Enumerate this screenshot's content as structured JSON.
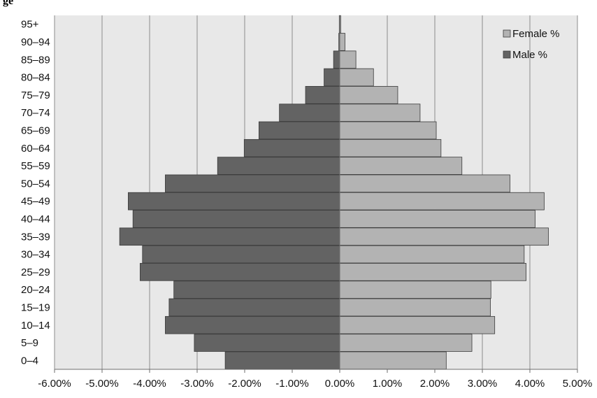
{
  "chart_data": {
    "type": "bar",
    "orientation": "horizontal",
    "title": "",
    "xlabel": "",
    "ylabel": "",
    "categories": [
      "0–4",
      "5–9",
      "10–14",
      "15–19",
      "20–24",
      "25–29",
      "30–34",
      "35–39",
      "40–44",
      "45–49",
      "50–54",
      "55–59",
      "60–64",
      "65–69",
      "70–74",
      "75–79",
      "80–84",
      "85–89",
      "90–94",
      "95+"
    ],
    "series": [
      {
        "name": "Female %",
        "color": "#b3b3b3",
        "values": [
          2.24,
          2.78,
          3.26,
          3.17,
          3.18,
          3.92,
          3.88,
          4.39,
          4.11,
          4.3,
          3.58,
          2.57,
          2.13,
          2.03,
          1.69,
          1.22,
          0.71,
          0.34,
          0.11,
          0.02
        ]
      },
      {
        "name": "Male %",
        "color": "#636363",
        "values": [
          -2.41,
          -3.06,
          -3.67,
          -3.59,
          -3.49,
          -4.2,
          -4.15,
          -4.63,
          -4.35,
          -4.45,
          -3.67,
          -2.57,
          -2.01,
          -1.7,
          -1.27,
          -0.72,
          -0.33,
          -0.13,
          -0.02,
          -0.01
        ]
      }
    ],
    "xlim": [
      -6,
      5
    ],
    "x_ticks": [
      "-6.00%",
      "-5.00%",
      "-4.00%",
      "-3.00%",
      "-2.00%",
      "-1.00%",
      "0.00%",
      "1.00%",
      "2.00%",
      "3.00%",
      "4.00%",
      "5.00%"
    ],
    "grid": true,
    "legend_position": "top-right"
  },
  "page": {
    "title_fragment": "ge"
  }
}
